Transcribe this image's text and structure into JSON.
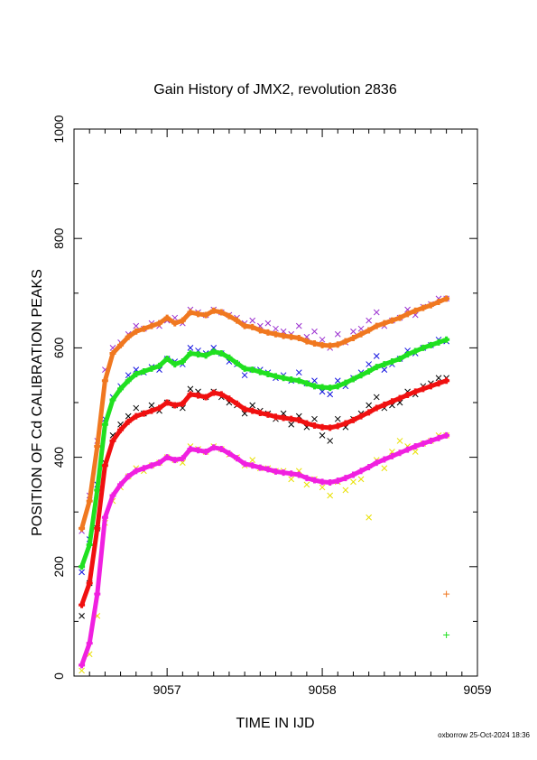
{
  "chart_data": {
    "type": "scatter",
    "title": "Gain History of JMX2, revolution 2836",
    "xlabel": "TIME IN IJD",
    "ylabel": "POSITION OF Cd CALIBRATION PEAKS",
    "xlim": [
      9056.4,
      9059
    ],
    "ylim": [
      0,
      1000
    ],
    "x_ticks": [
      "9057",
      "9058",
      "9059"
    ],
    "y_ticks": [
      "0",
      "200",
      "400",
      "600",
      "800",
      "1000"
    ],
    "grid": false,
    "footer": "oxborrow 25-Oct-2024 18:36",
    "series": [
      {
        "role": "raw",
        "marker": "x",
        "color": "#9b30d0",
        "x": [
          9056.45,
          9056.5,
          9056.55,
          9056.6,
          9056.65,
          9056.7,
          9056.75,
          9056.8,
          9056.85,
          9056.9,
          9056.95,
          9057.0,
          9057.05,
          9057.1,
          9057.15,
          9057.2,
          9057.25,
          9057.3,
          9057.35,
          9057.4,
          9057.45,
          9057.5,
          9057.55,
          9057.6,
          9057.65,
          9057.7,
          9057.75,
          9057.8,
          9057.85,
          9057.9,
          9057.95,
          9058.0,
          9058.05,
          9058.1,
          9058.15,
          9058.2,
          9058.25,
          9058.3,
          9058.35,
          9058.4,
          9058.45,
          9058.5,
          9058.55,
          9058.6,
          9058.65,
          9058.7,
          9058.75,
          9058.8
        ],
        "y": [
          265,
          330,
          430,
          560,
          600,
          610,
          625,
          640,
          635,
          645,
          640,
          650,
          655,
          645,
          670,
          665,
          660,
          670,
          665,
          660,
          655,
          645,
          650,
          640,
          645,
          635,
          630,
          625,
          640,
          620,
          630,
          615,
          600,
          625,
          610,
          630,
          635,
          650,
          665,
          640,
          650,
          655,
          670,
          660,
          675,
          680,
          690,
          690
        ]
      },
      {
        "role": "raw",
        "marker": "x",
        "color": "#1010e0",
        "x": [
          9056.45,
          9056.5,
          9056.55,
          9056.6,
          9056.65,
          9056.7,
          9056.75,
          9056.8,
          9056.85,
          9056.9,
          9056.95,
          9057.0,
          9057.05,
          9057.1,
          9057.15,
          9057.2,
          9057.25,
          9057.3,
          9057.35,
          9057.4,
          9057.45,
          9057.5,
          9057.55,
          9057.6,
          9057.65,
          9057.7,
          9057.75,
          9057.8,
          9057.85,
          9057.9,
          9057.95,
          9058.0,
          9058.05,
          9058.1,
          9058.15,
          9058.2,
          9058.25,
          9058.3,
          9058.35,
          9058.4,
          9058.45,
          9058.5,
          9058.55,
          9058.6,
          9058.65,
          9058.7,
          9058.75,
          9058.8
        ],
        "y": [
          190,
          250,
          350,
          470,
          510,
          530,
          550,
          560,
          555,
          565,
          560,
          580,
          575,
          570,
          600,
          595,
          590,
          600,
          590,
          575,
          570,
          550,
          560,
          560,
          555,
          545,
          550,
          540,
          555,
          535,
          540,
          520,
          515,
          540,
          530,
          545,
          555,
          570,
          585,
          560,
          570,
          580,
          595,
          590,
          600,
          605,
          615,
          612
        ]
      },
      {
        "role": "raw",
        "marker": "x",
        "color": "#000000",
        "x": [
          9056.45,
          9056.5,
          9056.55,
          9056.6,
          9056.65,
          9056.7,
          9056.75,
          9056.8,
          9056.85,
          9056.9,
          9056.95,
          9057.0,
          9057.05,
          9057.1,
          9057.15,
          9057.2,
          9057.25,
          9057.3,
          9057.35,
          9057.4,
          9057.45,
          9057.5,
          9057.55,
          9057.6,
          9057.65,
          9057.7,
          9057.75,
          9057.8,
          9057.85,
          9057.9,
          9057.95,
          9058.0,
          9058.05,
          9058.1,
          9058.15,
          9058.2,
          9058.25,
          9058.3,
          9058.35,
          9058.4,
          9058.45,
          9058.5,
          9058.55,
          9058.6,
          9058.65,
          9058.7,
          9058.75,
          9058.8
        ],
        "y": [
          110,
          170,
          270,
          390,
          440,
          460,
          475,
          490,
          480,
          495,
          485,
          500,
          495,
          490,
          525,
          520,
          510,
          520,
          510,
          500,
          495,
          480,
          495,
          485,
          480,
          470,
          480,
          460,
          475,
          455,
          470,
          440,
          430,
          470,
          455,
          470,
          480,
          495,
          510,
          490,
          495,
          500,
          520,
          515,
          530,
          535,
          545,
          545
        ]
      },
      {
        "role": "raw",
        "marker": "x",
        "color": "#e8e000",
        "x": [
          9056.45,
          9056.5,
          9056.55,
          9056.6,
          9056.65,
          9056.7,
          9056.75,
          9056.8,
          9056.85,
          9056.9,
          9056.95,
          9057.0,
          9057.05,
          9057.1,
          9057.15,
          9057.2,
          9057.25,
          9057.3,
          9057.35,
          9057.4,
          9057.45,
          9057.5,
          9057.55,
          9057.6,
          9057.65,
          9057.7,
          9057.75,
          9057.8,
          9057.85,
          9057.9,
          9057.95,
          9058.0,
          9058.05,
          9058.1,
          9058.15,
          9058.2,
          9058.25,
          9058.3,
          9058.35,
          9058.4,
          9058.45,
          9058.5,
          9058.55,
          9058.6,
          9058.65,
          9058.7,
          9058.75,
          9058.8
        ],
        "y": [
          10,
          40,
          110,
          280,
          320,
          345,
          365,
          380,
          375,
          385,
          390,
          400,
          395,
          390,
          420,
          415,
          410,
          420,
          415,
          405,
          400,
          385,
          395,
          380,
          380,
          375,
          375,
          360,
          375,
          350,
          360,
          345,
          330,
          355,
          340,
          355,
          360,
          290,
          395,
          380,
          410,
          430,
          420,
          410,
          425,
          430,
          440,
          440
        ]
      },
      {
        "role": "fit",
        "marker": "+",
        "color": "#f07820",
        "x": [
          9056.45,
          9056.5,
          9056.55,
          9056.6,
          9056.65,
          9056.7,
          9056.75,
          9056.8,
          9056.85,
          9056.9,
          9056.95,
          9057.0,
          9057.05,
          9057.1,
          9057.15,
          9057.2,
          9057.25,
          9057.3,
          9057.35,
          9057.4,
          9057.45,
          9057.5,
          9057.55,
          9057.6,
          9057.65,
          9057.7,
          9057.75,
          9057.8,
          9057.85,
          9057.9,
          9057.95,
          9058.0,
          9058.05,
          9058.1,
          9058.15,
          9058.2,
          9058.25,
          9058.3,
          9058.35,
          9058.4,
          9058.45,
          9058.5,
          9058.55,
          9058.6,
          9058.65,
          9058.7,
          9058.75,
          9058.8
        ],
        "y": [
          270,
          320,
          420,
          540,
          590,
          605,
          620,
          630,
          635,
          640,
          645,
          655,
          645,
          650,
          665,
          662,
          660,
          668,
          665,
          658,
          650,
          640,
          638,
          632,
          628,
          625,
          622,
          620,
          618,
          612,
          608,
          605,
          604,
          606,
          612,
          618,
          625,
          632,
          640,
          645,
          650,
          655,
          662,
          668,
          673,
          678,
          684,
          690
        ]
      },
      {
        "role": "fit",
        "marker": "+",
        "color": "#20e020",
        "x": [
          9056.45,
          9056.5,
          9056.55,
          9056.6,
          9056.65,
          9056.7,
          9056.75,
          9056.8,
          9056.85,
          9056.9,
          9056.95,
          9057.0,
          9057.05,
          9057.1,
          9057.15,
          9057.2,
          9057.25,
          9057.3,
          9057.35,
          9057.4,
          9057.45,
          9057.5,
          9057.55,
          9057.6,
          9057.65,
          9057.7,
          9057.75,
          9057.8,
          9057.85,
          9057.9,
          9057.95,
          9058.0,
          9058.05,
          9058.1,
          9058.15,
          9058.2,
          9058.25,
          9058.3,
          9058.35,
          9058.4,
          9058.45,
          9058.5,
          9058.55,
          9058.6,
          9058.65,
          9058.7,
          9058.75,
          9058.8
        ],
        "y": [
          200,
          240,
          340,
          460,
          505,
          525,
          540,
          552,
          557,
          562,
          567,
          580,
          570,
          575,
          590,
          588,
          586,
          593,
          590,
          582,
          572,
          562,
          560,
          556,
          552,
          548,
          545,
          542,
          540,
          535,
          530,
          528,
          527,
          530,
          536,
          543,
          550,
          557,
          565,
          570,
          575,
          580,
          588,
          594,
          600,
          605,
          610,
          615
        ]
      },
      {
        "role": "fit",
        "marker": "+",
        "color": "#f01010",
        "x": [
          9056.45,
          9056.5,
          9056.55,
          9056.6,
          9056.65,
          9056.7,
          9056.75,
          9056.8,
          9056.85,
          9056.9,
          9056.95,
          9057.0,
          9057.05,
          9057.1,
          9057.15,
          9057.2,
          9057.25,
          9057.3,
          9057.35,
          9057.4,
          9057.45,
          9057.5,
          9057.55,
          9057.6,
          9057.65,
          9057.7,
          9057.75,
          9057.8,
          9057.85,
          9057.9,
          9057.95,
          9058.0,
          9058.05,
          9058.1,
          9058.15,
          9058.2,
          9058.25,
          9058.3,
          9058.35,
          9058.4,
          9058.45,
          9058.5,
          9058.55,
          9058.6,
          9058.65,
          9058.7,
          9058.75,
          9058.8
        ],
        "y": [
          130,
          170,
          270,
          385,
          430,
          450,
          465,
          475,
          480,
          485,
          490,
          500,
          495,
          498,
          515,
          513,
          510,
          518,
          515,
          507,
          498,
          488,
          485,
          481,
          478,
          474,
          472,
          470,
          468,
          462,
          458,
          455,
          454,
          457,
          462,
          468,
          475,
          482,
          490,
          496,
          502,
          508,
          514,
          520,
          525,
          530,
          535,
          540
        ]
      },
      {
        "role": "fit",
        "marker": "+",
        "color": "#f020e0",
        "x": [
          9056.45,
          9056.5,
          9056.55,
          9056.6,
          9056.65,
          9056.7,
          9056.75,
          9056.8,
          9056.85,
          9056.9,
          9056.95,
          9057.0,
          9057.05,
          9057.1,
          9057.15,
          9057.2,
          9057.25,
          9057.3,
          9057.35,
          9057.4,
          9057.45,
          9057.5,
          9057.55,
          9057.6,
          9057.65,
          9057.7,
          9057.75,
          9057.8,
          9057.85,
          9057.9,
          9057.95,
          9058.0,
          9058.05,
          9058.1,
          9058.15,
          9058.2,
          9058.25,
          9058.3,
          9058.35,
          9058.4,
          9058.45,
          9058.5,
          9058.55,
          9058.6,
          9058.65,
          9058.7,
          9058.75,
          9058.8
        ],
        "y": [
          20,
          60,
          150,
          290,
          330,
          350,
          365,
          375,
          380,
          385,
          390,
          400,
          395,
          398,
          415,
          413,
          410,
          418,
          415,
          407,
          398,
          388,
          385,
          381,
          378,
          374,
          372,
          370,
          368,
          362,
          358,
          355,
          354,
          357,
          362,
          368,
          375,
          382,
          390,
          396,
          402,
          408,
          414,
          420,
          425,
          430,
          435,
          440
        ]
      },
      {
        "role": "marker",
        "marker": "+",
        "color": "#f07820",
        "x": [
          9058.8
        ],
        "y": [
          150
        ]
      },
      {
        "role": "marker",
        "marker": "+",
        "color": "#20e020",
        "x": [
          9058.8
        ],
        "y": [
          75
        ]
      }
    ]
  }
}
